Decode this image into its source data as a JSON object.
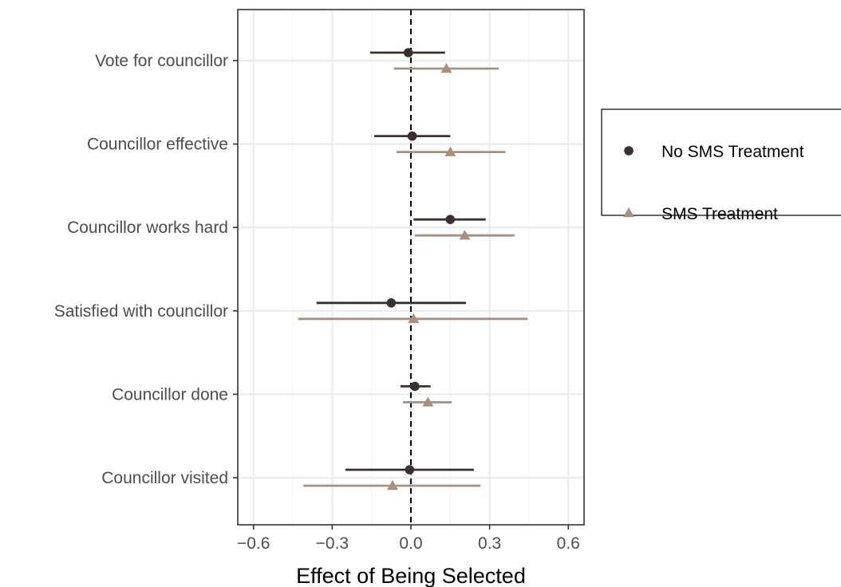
{
  "chart_data": {
    "type": "scatter",
    "subtype": "coefficient plot with horizontal confidence intervals",
    "title": "",
    "xlabel": "Effect of Being Selected",
    "ylabel": "",
    "xlim": [
      -0.66,
      0.66
    ],
    "x_ticks": [
      -0.6,
      -0.3,
      0.0,
      0.3,
      0.6
    ],
    "x_tick_labels": [
      "−0.6",
      "−0.3",
      "0.0",
      "0.3",
      "0.6"
    ],
    "reference_line": 0,
    "grid": true,
    "legend_position": "right",
    "categories": [
      "Vote for councillor",
      "Councillor effective",
      "Councillor works hard",
      "Satisfied with councillor",
      "Councillor done",
      "Councillor visited"
    ],
    "series": [
      {
        "name": "No SMS Treatment",
        "marker": "circle",
        "color": "#3b3030",
        "estimates": [
          -0.01,
          0.005,
          0.15,
          -0.075,
          0.015,
          -0.005
        ],
        "lower": [
          -0.155,
          -0.14,
          0.01,
          -0.36,
          -0.04,
          -0.25
        ],
        "upper": [
          0.13,
          0.15,
          0.285,
          0.21,
          0.075,
          0.24
        ]
      },
      {
        "name": "SMS Treatment",
        "marker": "triangle",
        "color": "#a89080",
        "estimates": [
          0.135,
          0.15,
          0.205,
          0.01,
          0.065,
          -0.07
        ],
        "lower": [
          -0.065,
          -0.055,
          0.015,
          -0.43,
          -0.03,
          -0.41
        ],
        "upper": [
          0.335,
          0.36,
          0.395,
          0.445,
          0.155,
          0.265
        ]
      }
    ]
  }
}
